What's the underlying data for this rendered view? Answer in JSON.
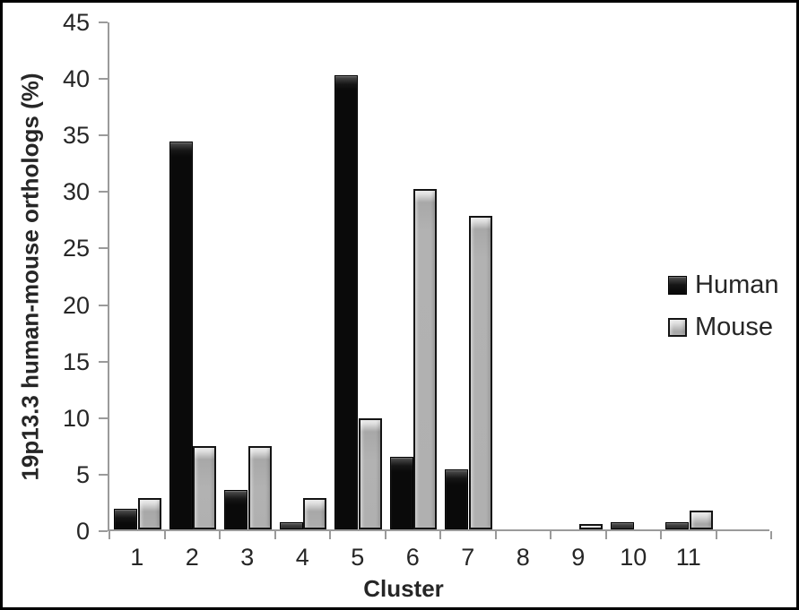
{
  "figure": {
    "background": "#ffffff",
    "border_color": "#000000",
    "axis_color": "#9a9a9a",
    "text_color": "#262626"
  },
  "chart_data": {
    "type": "bar",
    "title": "",
    "xlabel": "Cluster",
    "ylabel": "19p13.3 human-mouse orthologs (%)",
    "categories": [
      "1",
      "2",
      "3",
      "4",
      "5",
      "6",
      "7",
      "8",
      "9",
      "10",
      "11"
    ],
    "series": [
      {
        "name": "Human",
        "color": "#0d0d0d",
        "values": [
          1.8,
          34.3,
          3.5,
          0.6,
          40.2,
          6.4,
          5.3,
          0,
          0,
          0.6,
          0.6
        ]
      },
      {
        "name": "Mouse",
        "color": "#b3b3b3",
        "values": [
          2.8,
          7.4,
          7.4,
          2.8,
          9.8,
          30.1,
          27.7,
          0,
          0.5,
          0,
          1.7
        ]
      }
    ],
    "ylim": [
      0,
      45
    ],
    "yticks": [
      0,
      5,
      10,
      15,
      20,
      25,
      30,
      35,
      40,
      45
    ],
    "x_axis_extra_slots": 1,
    "grid": false,
    "legend_position": "right"
  }
}
